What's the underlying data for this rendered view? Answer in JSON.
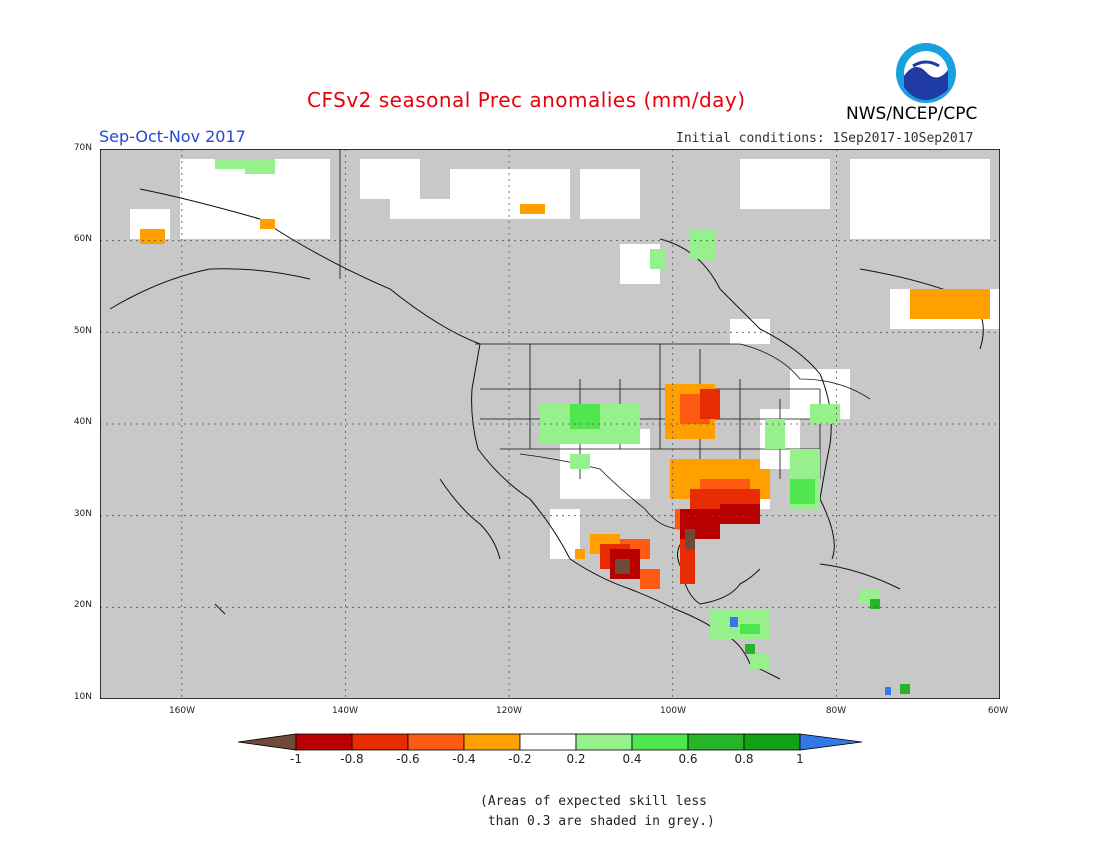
{
  "header": {
    "title": "CFSv2 seasonal Prec anomalies (mm/day)",
    "period": "Sep-Oct-Nov 2017",
    "initial_conditions": "Initial conditions: 1Sep2017-10Sep2017",
    "organization": "NWS/NCEP/CPC",
    "logo_text": "NOAA"
  },
  "map": {
    "region": "North America",
    "lon_range": [
      -170,
      -60
    ],
    "lat_range": [
      10,
      70
    ],
    "grey_color": "#c8c8c8",
    "lat_labels": [
      "10N",
      "20N",
      "30N",
      "40N",
      "50N",
      "60N",
      "70N"
    ],
    "lon_labels": [
      "160W",
      "140W",
      "120W",
      "100W",
      "80W",
      "60W"
    ]
  },
  "colorbar": {
    "tick_labels": [
      "-1",
      "-0.8",
      "-0.6",
      "-0.4",
      "-0.2",
      "0.2",
      "0.4",
      "0.6",
      "0.8",
      "1"
    ],
    "colors": [
      "#6e4a3a",
      "#b80000",
      "#e62c00",
      "#ff5a12",
      "#ff9f00",
      "#ffffff",
      "#96f08c",
      "#50e650",
      "#28b428",
      "#14a014",
      "#3278e6"
    ]
  },
  "anomaly_regions": [
    {
      "name": "Southern Plains / Texas",
      "color": "#e62c00",
      "lon": [
        -100,
        -92
      ],
      "lat": [
        27,
        35
      ]
    },
    {
      "name": "Louisiana coast",
      "color": "#b80000",
      "lon": [
        -95,
        -88
      ],
      "lat": [
        29,
        32
      ]
    },
    {
      "name": "Northwest Mexico",
      "color": "#b80000",
      "lon": [
        -108,
        -103
      ],
      "lat": [
        22,
        28
      ]
    },
    {
      "name": "Upper Midwest",
      "color": "#ff9f00",
      "lon": [
        -100,
        -94
      ],
      "lat": [
        39,
        43
      ]
    },
    {
      "name": "Southeast US",
      "color": "#96f08c",
      "lon": [
        -88,
        -83
      ],
      "lat": [
        31,
        37
      ]
    },
    {
      "name": "Southwest US",
      "color": "#96f08c",
      "lon": [
        -117,
        -108
      ],
      "lat": [
        35,
        42
      ]
    },
    {
      "name": "Labrador",
      "color": "#ff9f00",
      "lon": [
        -65,
        -60
      ],
      "lat": [
        52,
        55
      ]
    },
    {
      "name": "Central America",
      "color": "#96f08c",
      "lon": [
        -91,
        -86
      ],
      "lat": [
        15,
        20
      ]
    }
  ],
  "footnote": {
    "line1": "(Areas of expected skill less",
    "line2": " than 0.3 are shaded in grey.)"
  }
}
